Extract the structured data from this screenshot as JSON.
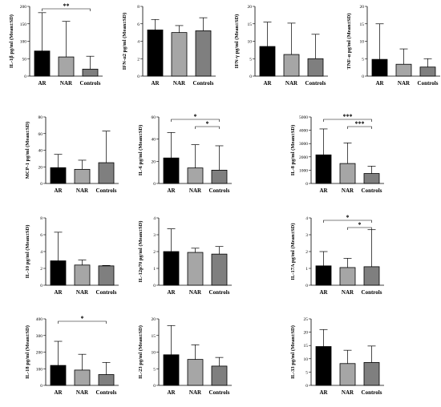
{
  "chart_data": [
    {
      "type": "bar",
      "ylabel": "IL-1β pg/ml (Mean±SD)",
      "categories": [
        "AR",
        "NAR",
        "Controls"
      ],
      "values": [
        72,
        55,
        20
      ],
      "errors": [
        110,
        102,
        37
      ],
      "ylim": [
        0,
        200
      ],
      "yticks": [
        0,
        50,
        100,
        150,
        200
      ],
      "colors": [
        "#000000",
        "#a6a6a6",
        "#7f7f7f"
      ],
      "significance": [
        {
          "from": 0,
          "to": 2,
          "label": "**"
        }
      ]
    },
    {
      "type": "bar",
      "ylabel": "IFN-α2 pg/ml (Mean±SD)",
      "categories": [
        "AR",
        "NAR",
        "Controls"
      ],
      "values": [
        5.3,
        5.0,
        5.2
      ],
      "errors": [
        1.2,
        0.8,
        1.5
      ],
      "ylim": [
        0,
        8
      ],
      "yticks": [
        0,
        2,
        4,
        6,
        8
      ],
      "colors": [
        "#000000",
        "#a6a6a6",
        "#7f7f7f"
      ],
      "significance": []
    },
    {
      "type": "bar",
      "ylabel": "IFN-γ pg/ml (Mean±SD)",
      "categories": [
        "AR",
        "NAR",
        "Controls"
      ],
      "values": [
        8.5,
        6.2,
        5.0
      ],
      "errors": [
        7.0,
        9.0,
        7.0
      ],
      "ylim": [
        0,
        20
      ],
      "yticks": [
        0,
        5,
        10,
        15,
        20
      ],
      "colors": [
        "#000000",
        "#a6a6a6",
        "#7f7f7f"
      ],
      "significance": []
    },
    {
      "type": "bar",
      "ylabel": "TNF-α pg/ml (Mean±SD)",
      "categories": [
        "AR",
        "NAR",
        "Controls"
      ],
      "values": [
        4.8,
        3.4,
        2.6
      ],
      "errors": [
        10.2,
        4.4,
        2.4
      ],
      "ylim": [
        0,
        20
      ],
      "yticks": [
        0,
        5,
        10,
        15,
        20
      ],
      "colors": [
        "#000000",
        "#a6a6a6",
        "#7f7f7f"
      ],
      "significance": []
    },
    {
      "type": "bar",
      "ylabel": "MCP-1 pg/ml (Mean±SD)",
      "categories": [
        "AR",
        "NAR",
        "Controls"
      ],
      "values": [
        19,
        17,
        25
      ],
      "errors": [
        16,
        11,
        38
      ],
      "ylim": [
        0,
        80
      ],
      "yticks": [
        0,
        20,
        40,
        60,
        80
      ],
      "colors": [
        "#000000",
        "#a6a6a6",
        "#7f7f7f"
      ],
      "significance": []
    },
    {
      "type": "bar",
      "ylabel": "IL-6 pg/ml (Mean±SD)",
      "categories": [
        "AR",
        "NAR",
        "Controls"
      ],
      "values": [
        23,
        14,
        12
      ],
      "errors": [
        23,
        21,
        22
      ],
      "ylim": [
        0,
        60
      ],
      "yticks": [
        0,
        20,
        40,
        60
      ],
      "colors": [
        "#000000",
        "#a6a6a6",
        "#7f7f7f"
      ],
      "significance": [
        {
          "from": 0,
          "to": 2,
          "label": "*"
        },
        {
          "from": 1,
          "to": 2,
          "label": "*"
        }
      ]
    },
    {
      "type": "bar",
      "ylabel": "IL-8 pg/ml (Mean±SD)",
      "categories": [
        "AR",
        "NAR",
        "Controls"
      ],
      "values": [
        2150,
        1500,
        750
      ],
      "errors": [
        1950,
        1550,
        550
      ],
      "ylim": [
        0,
        5000
      ],
      "yticks": [
        0,
        1000,
        2000,
        3000,
        4000,
        5000
      ],
      "colors": [
        "#000000",
        "#a6a6a6",
        "#7f7f7f"
      ],
      "significance": [
        {
          "from": 0,
          "to": 2,
          "label": "***"
        },
        {
          "from": 1,
          "to": 2,
          "label": "***"
        }
      ]
    },
    {
      "type": "bar",
      "ylabel": "IL-10 pg/ml (Mean±SD)",
      "categories": [
        "AR",
        "NAR",
        "Controls"
      ],
      "values": [
        2.9,
        2.4,
        2.3
      ],
      "errors": [
        3.4,
        0.6,
        0.05
      ],
      "ylim": [
        0,
        8
      ],
      "yticks": [
        0,
        2,
        4,
        6,
        8
      ],
      "colors": [
        "#000000",
        "#a6a6a6",
        "#7f7f7f"
      ],
      "significance": []
    },
    {
      "type": "bar",
      "ylabel": "IL-12p70 pg/ml (Mean±SD)",
      "categories": [
        "AR",
        "NAR",
        "Controls"
      ],
      "values": [
        2.0,
        1.95,
        1.85
      ],
      "errors": [
        1.35,
        0.25,
        0.45
      ],
      "ylim": [
        0,
        4
      ],
      "yticks": [
        0,
        1,
        2,
        3,
        4
      ],
      "colors": [
        "#000000",
        "#a6a6a6",
        "#7f7f7f"
      ],
      "significance": []
    },
    {
      "type": "bar",
      "ylabel": "IL-17A pg/ml (Mean±SD)",
      "categories": [
        "AR",
        "NAR",
        "Controls"
      ],
      "values": [
        1.15,
        1.05,
        1.1
      ],
      "errors": [
        0.85,
        0.55,
        2.2
      ],
      "ylim": [
        0,
        4
      ],
      "yticks": [
        0,
        1,
        2,
        3,
        4
      ],
      "colors": [
        "#000000",
        "#a6a6a6",
        "#7f7f7f"
      ],
      "significance": [
        {
          "from": 0,
          "to": 2,
          "label": "*"
        },
        {
          "from": 1,
          "to": 2,
          "label": "*"
        }
      ]
    },
    {
      "type": "bar",
      "ylabel": "IL-18 pg/ml (Mean±SD)",
      "categories": [
        "AR",
        "NAR",
        "Controls"
      ],
      "values": [
        120,
        92,
        65
      ],
      "errors": [
        145,
        95,
        73
      ],
      "ylim": [
        0,
        400
      ],
      "yticks": [
        0,
        100,
        200,
        300,
        400
      ],
      "colors": [
        "#000000",
        "#a6a6a6",
        "#7f7f7f"
      ],
      "significance": [
        {
          "from": 0,
          "to": 2,
          "label": "*"
        }
      ]
    },
    {
      "type": "bar",
      "ylabel": "IL-23 pg/ml (Mean±SD)",
      "categories": [
        "AR",
        "NAR",
        "Controls"
      ],
      "values": [
        9.2,
        7.8,
        5.8
      ],
      "errors": [
        8.8,
        4.4,
        2.6
      ],
      "ylim": [
        0,
        20
      ],
      "yticks": [
        0,
        5,
        10,
        15,
        20
      ],
      "colors": [
        "#000000",
        "#a6a6a6",
        "#7f7f7f"
      ],
      "significance": []
    },
    {
      "type": "bar",
      "ylabel": "IL-33 pg/ml (Mean±SD)",
      "categories": [
        "AR",
        "NAR",
        "Controls"
      ],
      "values": [
        14.6,
        8.2,
        8.6
      ],
      "errors": [
        6.4,
        5.0,
        6.2
      ],
      "ylim": [
        0,
        25
      ],
      "yticks": [
        0,
        5,
        10,
        15,
        20,
        25
      ],
      "colors": [
        "#000000",
        "#a6a6a6",
        "#7f7f7f"
      ],
      "significance": []
    }
  ]
}
